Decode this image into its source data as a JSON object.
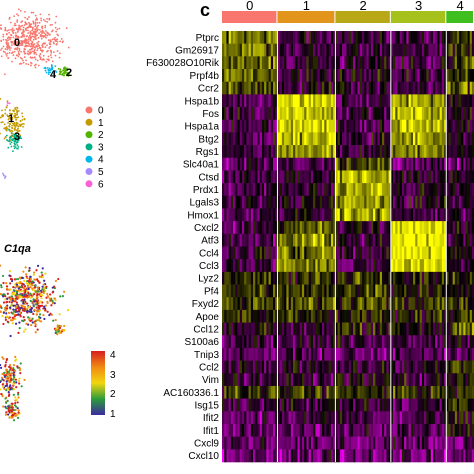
{
  "panel_label": "c",
  "umap_clusters": [
    "0",
    "1",
    "2",
    "3",
    "4",
    "5",
    "6"
  ],
  "umap_cluster_colors": [
    "#f8766d",
    "#c49a00",
    "#53b400",
    "#00b087",
    "#00b6eb",
    "#a58aff",
    "#fb61d7"
  ],
  "umap_on_plot_labels": [
    "0",
    "1",
    "2",
    "3",
    "4"
  ],
  "feature_gene": "C1qa",
  "feature_scale": {
    "ticks": [
      "1",
      "2",
      "3",
      "4"
    ],
    "min": 1,
    "max": 4.3,
    "colors": [
      "#3b2aa0",
      "#2c9c3a",
      "#f2d50f",
      "#f08a12",
      "#d71f1f"
    ]
  },
  "chart_data": {
    "type": "heatmap",
    "title": "",
    "clusters": [
      "0",
      "1",
      "2",
      "3",
      "4"
    ],
    "cluster_colors": [
      "#f8766d",
      "#e3941a",
      "#b8a818",
      "#a6c11b",
      "#3fbe1f"
    ],
    "cluster_cell_fraction": [
      0.22,
      0.23,
      0.22,
      0.22,
      0.11
    ],
    "genes": [
      "Ptprc",
      "Gm26917",
      "F630028O10Rik",
      "Prpf4b",
      "Ccr2",
      "Hspa1b",
      "Fos",
      "Hspa1a",
      "Btg2",
      "Rgs1",
      "Slc40a1",
      "Ctsd",
      "Prdx1",
      "Lgals3",
      "Hmox1",
      "Cxcl2",
      "Atf3",
      "Ccl4",
      "Ccl3",
      "Lyz2",
      "Pf4",
      "Fxyd2",
      "Apoe",
      "Ccl12",
      "S100a6",
      "Tnip3",
      "Ccl2",
      "Vim",
      "AC160336.1",
      "Isg15",
      "Ifit2",
      "Ifit1",
      "Cxcl9",
      "Cxcl10"
    ],
    "scaled_expression_by_cluster": [
      [
        0.9,
        -0.4,
        -0.3,
        -0.5,
        0.3
      ],
      [
        0.9,
        -0.4,
        -0.3,
        -0.5,
        0.2
      ],
      [
        0.8,
        -0.4,
        -0.3,
        -0.5,
        0.2
      ],
      [
        0.8,
        -0.3,
        -0.3,
        -0.4,
        0.2
      ],
      [
        0.6,
        -0.3,
        -0.3,
        -0.4,
        0.6
      ],
      [
        -0.5,
        1.6,
        -0.5,
        1.2,
        -0.3
      ],
      [
        -0.5,
        1.5,
        -0.5,
        1.4,
        -0.3
      ],
      [
        -0.5,
        1.6,
        -0.5,
        1.3,
        -0.3
      ],
      [
        -0.4,
        1.4,
        -0.4,
        1.1,
        -0.2
      ],
      [
        -0.4,
        1.2,
        -0.4,
        0.9,
        -0.2
      ],
      [
        -0.8,
        -0.6,
        0.5,
        -0.6,
        -0.6
      ],
      [
        -0.4,
        -0.3,
        1.4,
        -0.3,
        -0.3
      ],
      [
        -0.4,
        -0.3,
        1.3,
        -0.3,
        -0.3
      ],
      [
        -0.3,
        -0.3,
        1.2,
        -0.3,
        -0.2
      ],
      [
        -0.4,
        -0.3,
        1.3,
        -0.3,
        -0.3
      ],
      [
        -0.5,
        0.6,
        -0.4,
        1.8,
        -0.3
      ],
      [
        -0.5,
        1.0,
        -0.4,
        1.8,
        -0.3
      ],
      [
        -0.4,
        1.0,
        -0.4,
        1.8,
        -0.3
      ],
      [
        -0.4,
        0.9,
        -0.4,
        1.8,
        -0.3
      ],
      [
        0.4,
        0.2,
        0.4,
        0.2,
        0.3
      ],
      [
        0.4,
        0.3,
        0.5,
        0.2,
        0.2
      ],
      [
        0.5,
        0.5,
        0.5,
        0.4,
        0.4
      ],
      [
        0.3,
        0.2,
        0.3,
        0.2,
        0.3
      ],
      [
        -0.1,
        -0.2,
        0.2,
        -0.2,
        0.6
      ],
      [
        -0.5,
        -0.5,
        -0.4,
        -0.5,
        -0.4
      ],
      [
        -0.7,
        -0.7,
        -0.7,
        -0.7,
        -0.7
      ],
      [
        -0.4,
        -0.4,
        -0.4,
        -0.4,
        0.5
      ],
      [
        -0.3,
        -0.3,
        -0.2,
        -0.3,
        0.3
      ],
      [
        0.3,
        0.3,
        0.3,
        0.3,
        0.3
      ],
      [
        -0.4,
        -0.4,
        -0.3,
        -0.4,
        0.2
      ],
      [
        -0.6,
        -0.6,
        -0.5,
        -0.6,
        0.1
      ],
      [
        -0.7,
        -0.7,
        -0.6,
        -0.7,
        0.0
      ],
      [
        -0.8,
        -0.8,
        -0.8,
        -0.8,
        -0.8
      ],
      [
        -0.8,
        -0.8,
        -0.8,
        -0.8,
        -0.8
      ]
    ],
    "color_scale": [
      "#ff00ff",
      "#000000",
      "#ffff00"
    ],
    "value_range": [
      -2,
      2
    ]
  }
}
